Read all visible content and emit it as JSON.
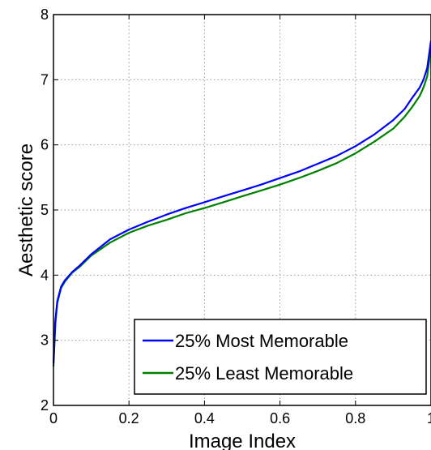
{
  "chart_data": {
    "type": "line",
    "xlabel": "Image Index",
    "ylabel": "Aesthetic score",
    "xlim": [
      0,
      1
    ],
    "ylim": [
      2,
      8
    ],
    "x_ticks": [
      0,
      0.2,
      0.4,
      0.6,
      0.8,
      1
    ],
    "x_tick_labels": [
      "0",
      "0.2",
      "0.4",
      "0.6",
      "0.8",
      "1"
    ],
    "y_ticks": [
      2,
      3,
      4,
      5,
      6,
      7,
      8
    ],
    "y_tick_labels": [
      "2",
      "3",
      "4",
      "5",
      "6",
      "7",
      "8"
    ],
    "grid": true,
    "legend_position": "bottom-right",
    "series": [
      {
        "name": "25% Most Memorable",
        "color": "#0000ff",
        "x": [
          0,
          0.005,
          0.01,
          0.02,
          0.03,
          0.05,
          0.07,
          0.1,
          0.15,
          0.2,
          0.25,
          0.3,
          0.35,
          0.4,
          0.45,
          0.5,
          0.55,
          0.6,
          0.65,
          0.7,
          0.75,
          0.8,
          0.85,
          0.9,
          0.93,
          0.95,
          0.97,
          0.98,
          0.99,
          1.0
        ],
        "y": [
          2.65,
          3.3,
          3.6,
          3.82,
          3.92,
          4.05,
          4.15,
          4.32,
          4.55,
          4.7,
          4.82,
          4.93,
          5.03,
          5.12,
          5.21,
          5.3,
          5.39,
          5.49,
          5.59,
          5.71,
          5.83,
          5.98,
          6.16,
          6.38,
          6.55,
          6.72,
          6.88,
          7.0,
          7.18,
          7.6
        ]
      },
      {
        "name": "25% Least Memorable",
        "color": "#008000",
        "x": [
          0,
          0.005,
          0.01,
          0.02,
          0.03,
          0.05,
          0.07,
          0.1,
          0.15,
          0.2,
          0.25,
          0.3,
          0.35,
          0.4,
          0.45,
          0.5,
          0.55,
          0.6,
          0.65,
          0.7,
          0.75,
          0.8,
          0.85,
          0.9,
          0.93,
          0.95,
          0.97,
          0.98,
          0.99,
          1.0
        ],
        "y": [
          2.6,
          3.25,
          3.57,
          3.8,
          3.9,
          4.04,
          4.13,
          4.3,
          4.5,
          4.65,
          4.76,
          4.85,
          4.95,
          5.03,
          5.12,
          5.21,
          5.3,
          5.39,
          5.49,
          5.6,
          5.72,
          5.87,
          6.05,
          6.25,
          6.43,
          6.58,
          6.75,
          6.88,
          7.05,
          7.5
        ]
      }
    ]
  }
}
